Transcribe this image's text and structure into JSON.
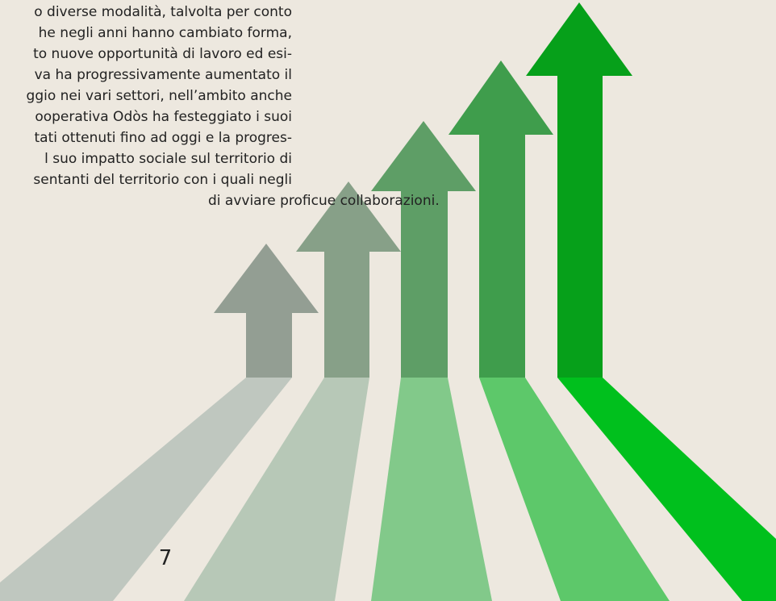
{
  "body_text": {
    "lines": [
      "o diverse modalità, talvolta per conto",
      "he negli anni hanno cambiato forma,",
      "to nuove opportunità di lavoro ed esi-",
      "va ha progressivamente aumentato il",
      "ggio nei vari settori, nell’ambito anche",
      "ooperativa Odòs ha festeggiato i suoi",
      "tati ottenuti fino ad oggi e la progres-",
      "l suo impatto sociale sul territorio di",
      "sentanti del territorio con i quali negli",
      "di avviare proficue collaborazioni."
    ]
  },
  "page_number": "7"
}
